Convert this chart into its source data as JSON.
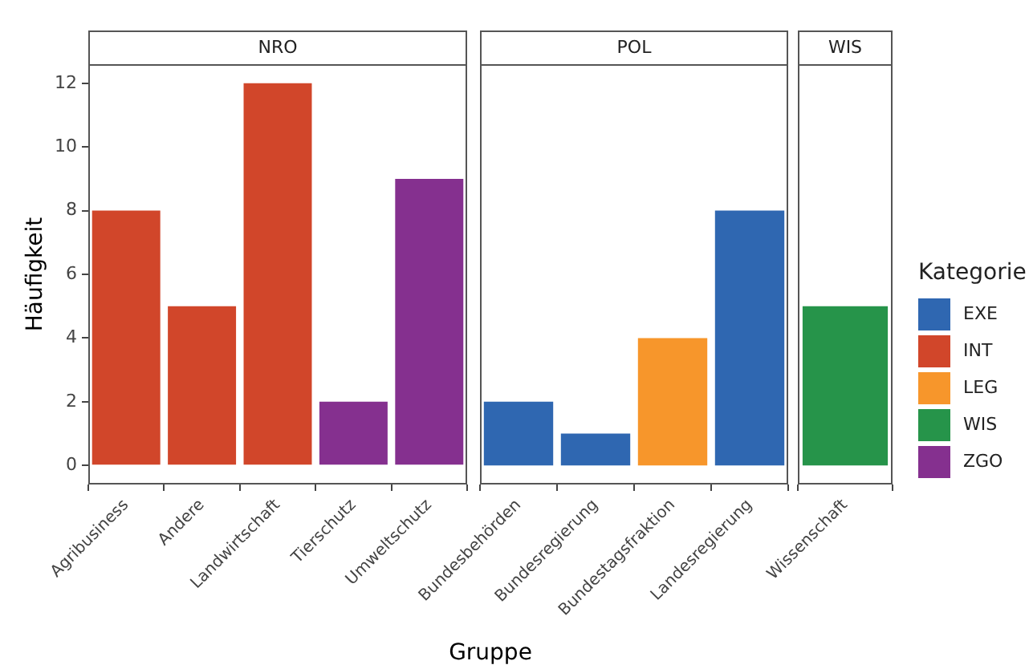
{
  "chart_data": [
    {
      "type": "bar",
      "title": "NRO",
      "ylabel": "Häufigkeit",
      "xlabel": "Gruppe",
      "categories": [
        "Agribusiness",
        "Andere",
        "Landwirtschaft",
        "Tierschutz",
        "Umweltschutz"
      ],
      "ylim": [
        -0.6,
        12.6
      ],
      "yticks": [
        0,
        2,
        4,
        6,
        8,
        10,
        12
      ],
      "values": [
        8,
        5,
        12,
        2,
        9
      ],
      "colors": [
        "#d1462a",
        "#d1462a",
        "#d1462a",
        "#85308f",
        "#85308f"
      ]
    },
    {
      "type": "bar",
      "title": "POL",
      "tick_labels": "x",
      "categories": [
        "Bundesbehörden",
        "Bundesregierung",
        "Bundestagsfraktion",
        "Landesregierung"
      ],
      "ylim": [
        -0.6,
        12.6
      ],
      "yticks": [
        0,
        2,
        4,
        6,
        8,
        10,
        12
      ],
      "values": [
        2,
        1,
        4,
        8
      ],
      "colors": [
        "#2f67b1",
        "#2f67b1",
        "#f7962b",
        "#2f67b1"
      ]
    },
    {
      "type": "bar",
      "title": "WIS",
      "tick_labels": "x",
      "legend": "right",
      "legend_title": "Kategorie",
      "categories": [
        "Wissenschaft"
      ],
      "ylim": [
        -0.6,
        12.6
      ],
      "yticks": [
        0,
        2,
        4,
        6,
        8,
        10,
        12
      ],
      "series": [
        {
          "name": "EXE",
          "color": "#2f67b1",
          "values": [
            null
          ]
        },
        {
          "name": "INT",
          "color": "#d1462a",
          "values": [
            null
          ]
        },
        {
          "name": "LEG",
          "color": "#f7962b",
          "values": [
            null
          ]
        },
        {
          "name": "WIS",
          "color": "#26944a",
          "values": [
            5
          ]
        },
        {
          "name": "ZGO",
          "color": "#85308f",
          "values": [
            null
          ]
        }
      ]
    }
  ]
}
